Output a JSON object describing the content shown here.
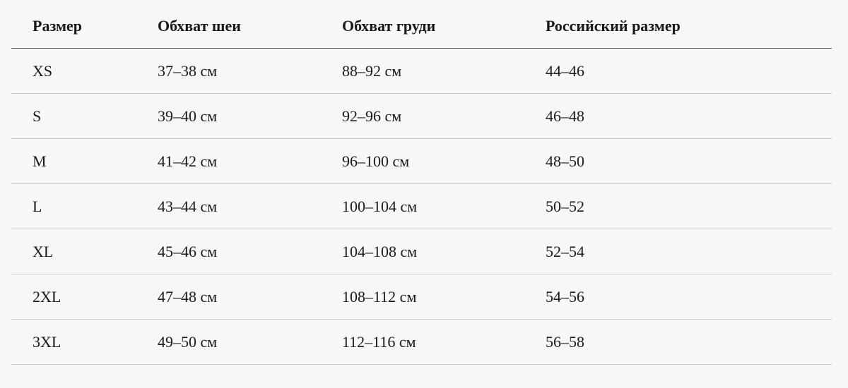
{
  "table": {
    "header": [
      "Размер",
      "Обхват шеи",
      "Обхват груди",
      "Российский размер"
    ],
    "rows": [
      [
        "XS",
        "37–38 см",
        "88–92 см",
        "44–46"
      ],
      [
        "S",
        "39–40 см",
        "92–96 см",
        "46–48"
      ],
      [
        "M",
        "41–42 см",
        "96–100 см",
        "48–50"
      ],
      [
        "L",
        "43–44 см",
        "100–104 см",
        "50–52"
      ],
      [
        "XL",
        "45–46 см",
        "104–108 см",
        "52–54"
      ],
      [
        "2XL",
        "47–48 см",
        "108–112 см",
        "54–56"
      ],
      [
        "3XL",
        "49–50 см",
        "112–116 см",
        "56–58"
      ]
    ]
  }
}
